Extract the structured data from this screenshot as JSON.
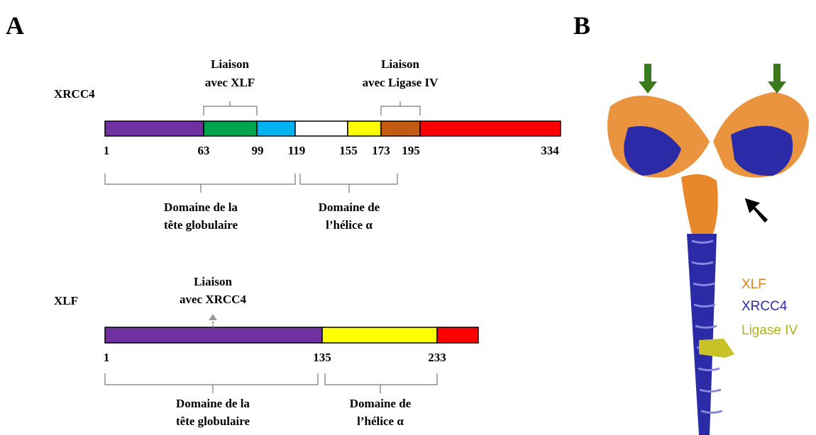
{
  "panel_a": {
    "label": "A",
    "xrcc4": {
      "name": "XRCC4",
      "positions": [
        1,
        63,
        99,
        119,
        155,
        173,
        195,
        334
      ],
      "binding_xlf": [
        "Liaison",
        "avec XLF"
      ],
      "binding_ligase": [
        "Liaison",
        "avec Ligase IV"
      ],
      "domain_head": [
        "Domaine de la",
        "tête globulaire"
      ],
      "domain_helix": [
        "Domaine de",
        "l’hélice α"
      ]
    },
    "xlf": {
      "name": "XLF",
      "positions": [
        1,
        135,
        233
      ],
      "binding_xrcc4": [
        "Liaison",
        "avec XRCC4"
      ],
      "domain_head": [
        "Domaine de la",
        "tête globulaire"
      ],
      "domain_helix": [
        "Domaine de",
        "l’hélice α"
      ]
    }
  },
  "panel_b": {
    "label": "B",
    "legend": [
      "XLF",
      "XRCC4",
      "Ligase IV"
    ]
  }
}
